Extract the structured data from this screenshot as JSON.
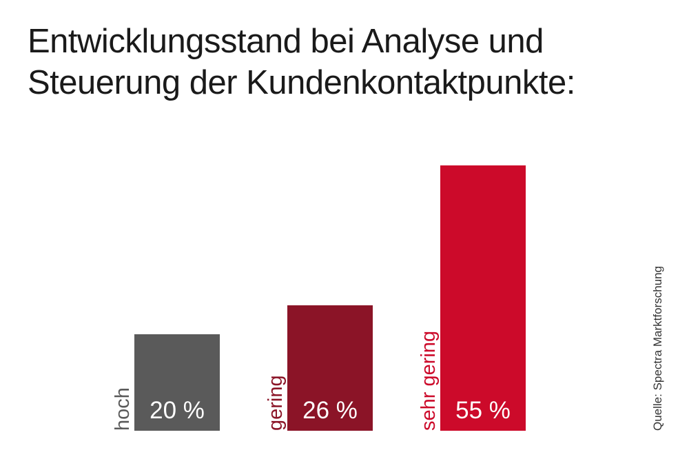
{
  "source": "Quelle: Spectra Marktforschung",
  "chart_data": {
    "type": "bar",
    "title": [
      "Entwicklungsstand bei Analyse und",
      "Steuerung der Kundenkontaktpunkte:"
    ],
    "categories": [
      "hoch",
      "gering",
      "sehr gering"
    ],
    "values": [
      20,
      26,
      55
    ],
    "value_labels": [
      "20 %",
      "26 %",
      "55 %"
    ],
    "unit": "%",
    "colors": [
      "#5a5a5a",
      "#8b1427",
      "#cc0a2a"
    ],
    "ylim": [
      0,
      55
    ],
    "grid": false,
    "legend": "none"
  }
}
